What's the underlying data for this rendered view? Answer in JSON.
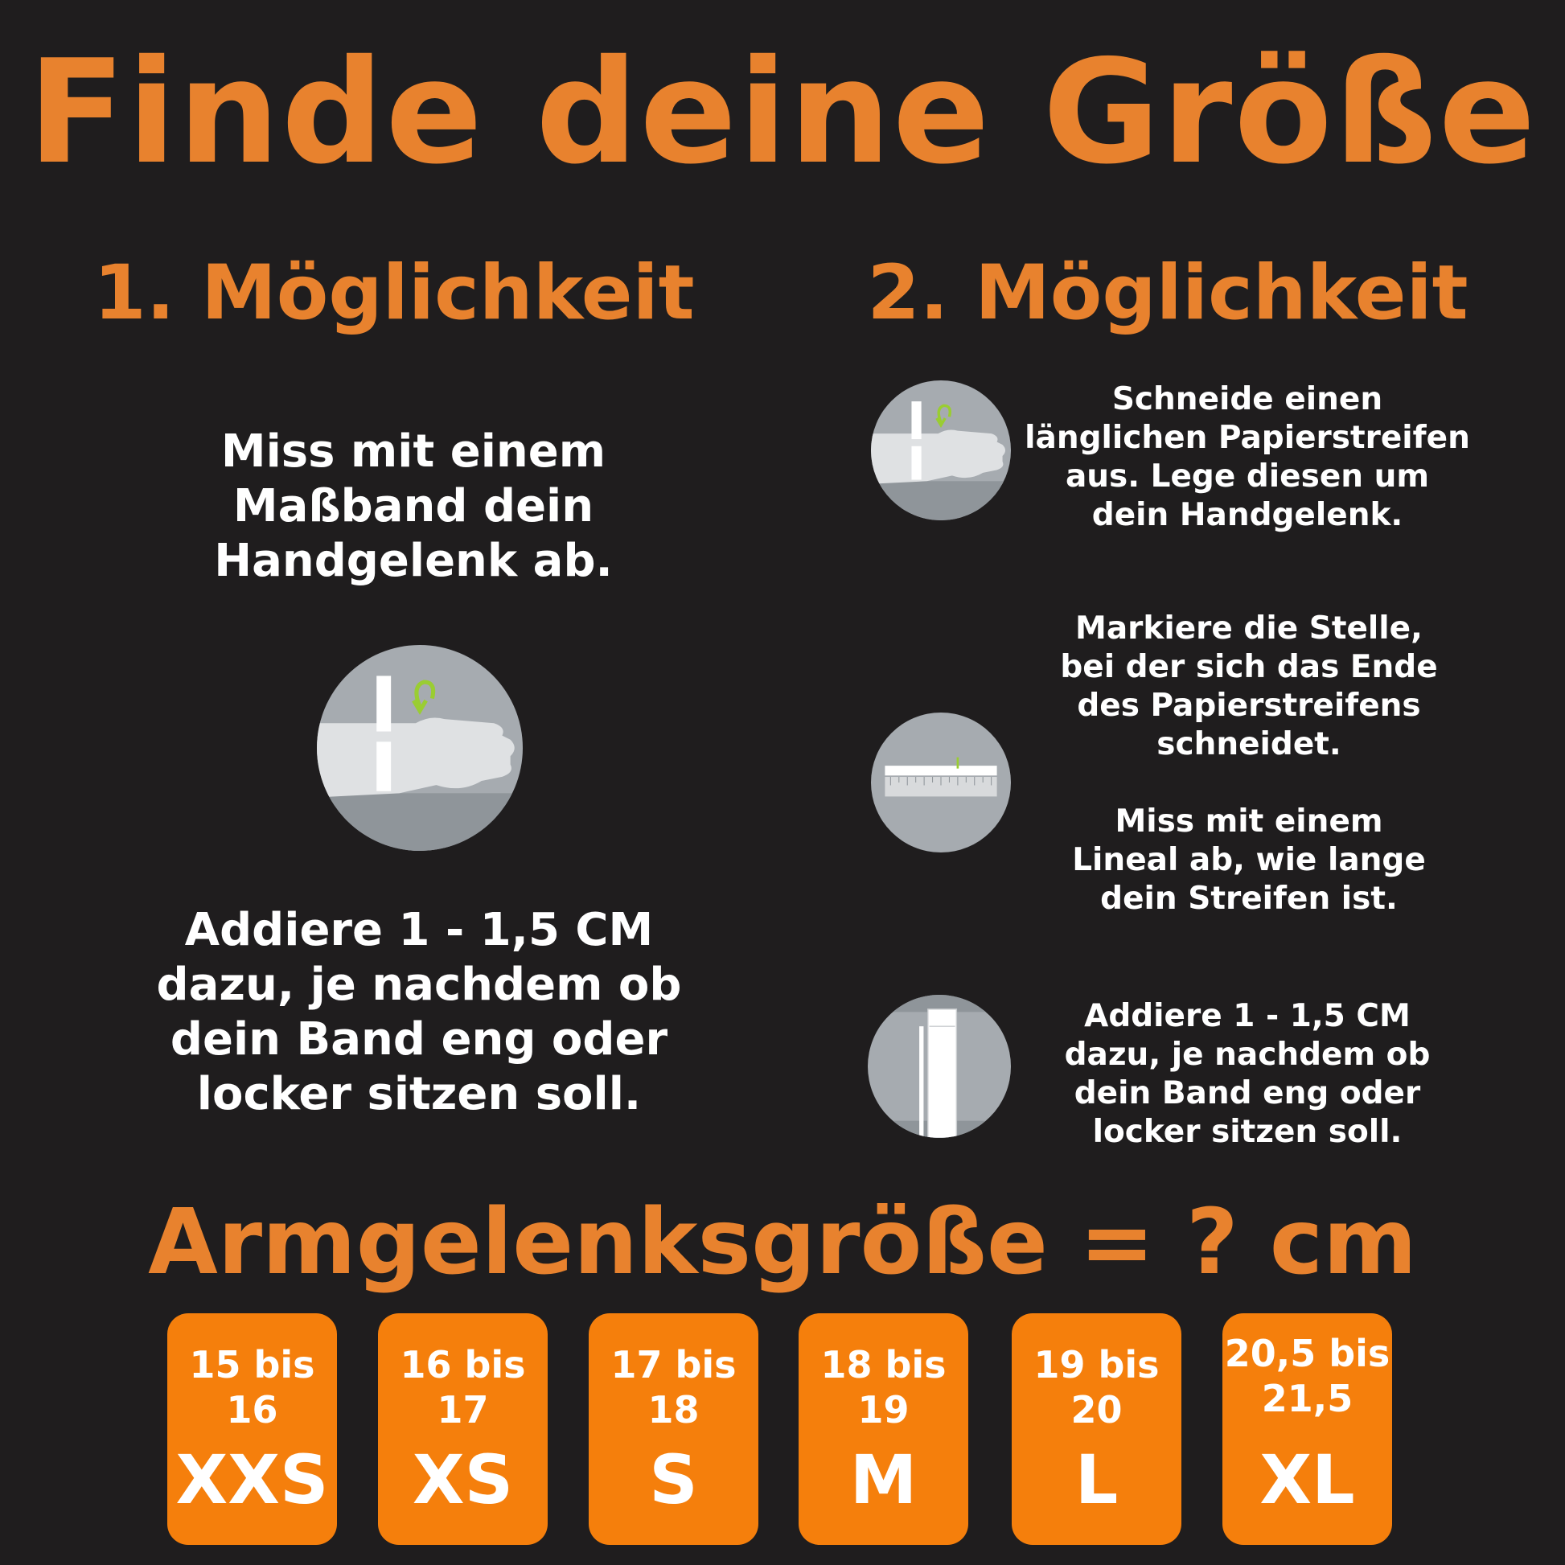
{
  "title": "Finde deine Größe",
  "option1": {
    "heading": "1. Möglichkeit",
    "step1": [
      "Miss mit einem",
      "Maßband dein",
      "Handgelenk ab."
    ],
    "step2": [
      "Addiere 1 - 1,5 CM",
      "dazu, je nachdem ob",
      "dein Band eng oder",
      "locker sitzen soll."
    ],
    "icon": "wrist-measure-icon"
  },
  "option2": {
    "heading": "2. Möglichkeit",
    "step1": [
      "Schneide einen",
      "länglichen Papierstreifen",
      "aus. Lege diesen um",
      "dein Handgelenk."
    ],
    "step2": [
      "Markiere die Stelle,",
      "bei der sich das Ende",
      "des Papierstreifens",
      "schneidet."
    ],
    "step3": [
      "Miss mit einem",
      "Lineal ab, wie lange",
      "dein Streifen ist."
    ],
    "step4": [
      "Addiere 1 - 1,5 CM",
      "dazu, je nachdem ob",
      "dein Band eng oder",
      "locker sitzen soll."
    ],
    "icons": [
      "wrist-paper-strip-icon",
      "ruler-icon",
      "paper-strip-icon"
    ]
  },
  "formula": "Armgelenksgröße = ? cm",
  "sizes": [
    {
      "range": [
        "15 bis",
        "16"
      ],
      "label": "XXS"
    },
    {
      "range": [
        "16 bis",
        "17"
      ],
      "label": "XS"
    },
    {
      "range": [
        "17 bis",
        "18"
      ],
      "label": "S"
    },
    {
      "range": [
        "18 bis",
        "19"
      ],
      "label": "M"
    },
    {
      "range": [
        "19 bis",
        "20"
      ],
      "label": "L"
    },
    {
      "range": [
        "20,5 bis",
        "21,5"
      ],
      "label": "XL"
    }
  ],
  "colors": {
    "background": "#1f1d1e",
    "accent": "#e8822e",
    "box": "#f57f0c",
    "text": "#ffffff",
    "icon_circle": "#a6abb0",
    "arrow": "#9acd32"
  }
}
